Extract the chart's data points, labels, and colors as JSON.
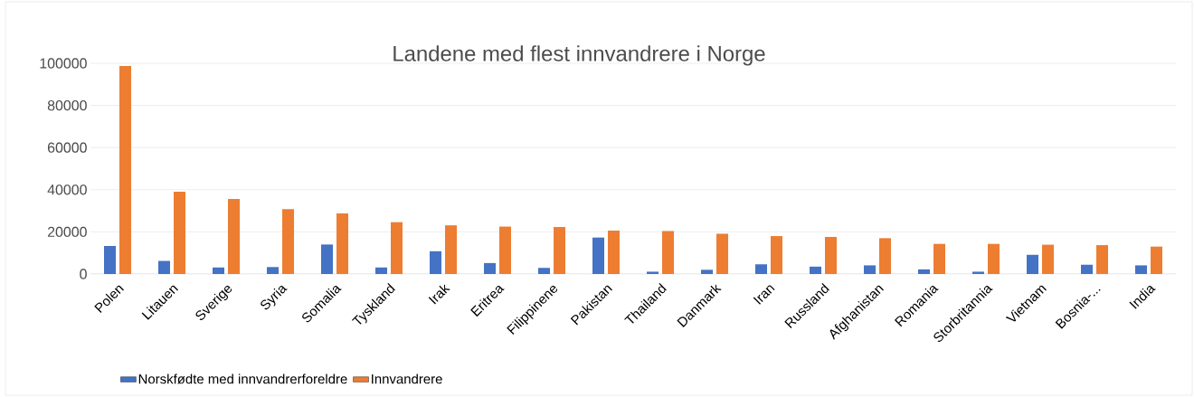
{
  "chart_data": {
    "type": "bar",
    "title": "Landene med flest innvandrere i Norge",
    "categories": [
      "Polen",
      "Litauen",
      "Sverige",
      "Syria",
      "Somalia",
      "Tyskland",
      "Irak",
      "Eritrea",
      "Filippinene",
      "Pakistan",
      "Thailand",
      "Danmark",
      "Iran",
      "Russland",
      "Afghanistan",
      "Romania",
      "Storbritannia",
      "Vietnam",
      "Bosnia-...",
      "India"
    ],
    "series": [
      {
        "name": "Norskfødte med innvandrerforeldre",
        "color": "#4472c4",
        "values": [
          13300,
          6200,
          3100,
          3300,
          14000,
          3100,
          10800,
          5200,
          2900,
          17300,
          1100,
          2000,
          4600,
          3500,
          4100,
          2200,
          1100,
          9100,
          4400,
          4100
        ]
      },
      {
        "name": "Innvandrere",
        "color": "#ed7d31",
        "values": [
          98700,
          39000,
          35600,
          30800,
          28700,
          24600,
          23100,
          22500,
          22300,
          20600,
          20400,
          19100,
          18000,
          17600,
          17000,
          14300,
          14300,
          13900,
          13700,
          13000
        ]
      }
    ],
    "ylim": [
      0,
      100000
    ],
    "yticks": [
      0,
      20000,
      40000,
      60000,
      80000,
      100000
    ],
    "grid": "y",
    "legend": "bottom"
  }
}
